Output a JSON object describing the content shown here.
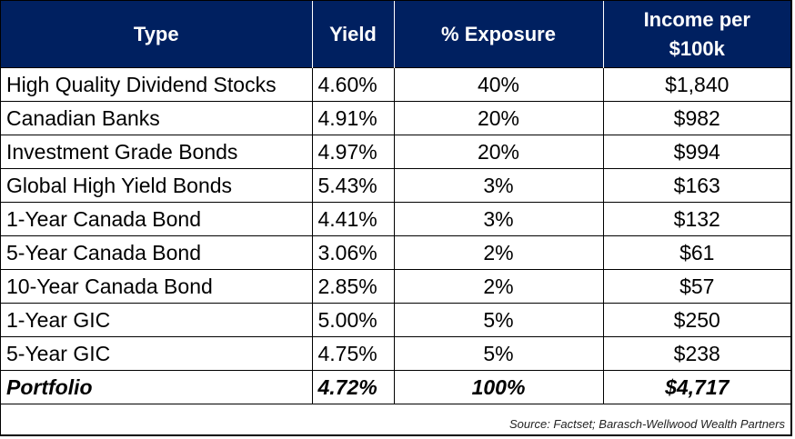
{
  "headers": [
    "Type",
    "Yield",
    "% Exposure",
    "Income per $100k"
  ],
  "rows": [
    [
      "High Quality Dividend Stocks",
      "4.60%",
      "40%",
      "$1,840"
    ],
    [
      "Canadian Banks",
      "4.91%",
      "20%",
      "$982"
    ],
    [
      "Investment Grade Bonds",
      "4.97%",
      "20%",
      "$994"
    ],
    [
      "Global High Yield Bonds",
      "5.43%",
      "3%",
      "$163"
    ],
    [
      "1-Year Canada Bond",
      "4.41%",
      "3%",
      "$132"
    ],
    [
      "5-Year Canada Bond",
      "3.06%",
      "2%",
      "$61"
    ],
    [
      "10-Year Canada Bond",
      "2.85%",
      "2%",
      "$57"
    ],
    [
      "1-Year GIC",
      "5.00%",
      "5%",
      "$250"
    ],
    [
      "5-Year GIC",
      "4.75%",
      "5%",
      "$238"
    ]
  ],
  "total": [
    "Portfolio",
    "4.72%",
    "100%",
    "$4,717"
  ],
  "source": "Source: Factset; Barasch-Wellwood Wealth Partners",
  "colors": {
    "header_bg": "#002060"
  }
}
